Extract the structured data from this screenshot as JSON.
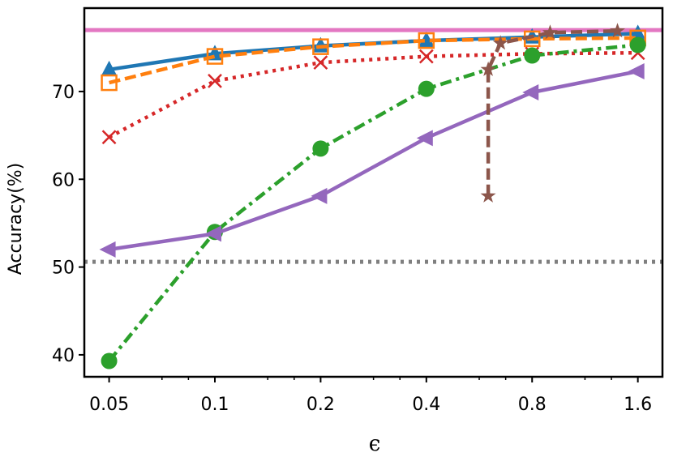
{
  "chart_data": {
    "type": "line",
    "title": "",
    "xlabel": "ϵ",
    "ylabel": "Accuracy(%)",
    "x_scale": "log2",
    "x_ticks": [
      0.05,
      0.1,
      0.2,
      0.4,
      0.8,
      1.6
    ],
    "x_tick_labels": [
      "0.05",
      "0.1",
      "0.2",
      "0.4",
      "0.8",
      "1.6"
    ],
    "xlim": [
      0.0425,
      1.88
    ],
    "ylim": [
      37.5,
      79.5
    ],
    "y_ticks": [
      40,
      50,
      60,
      70
    ],
    "y_tick_labels": [
      "40",
      "50",
      "60",
      "70"
    ],
    "grid": false,
    "legend": "none",
    "reference_lines": [
      {
        "name": "upper-reference",
        "y": 77.0,
        "color": "#e377c2",
        "style": "solid"
      },
      {
        "name": "lower-reference",
        "y": 50.6,
        "color": "#7f7f7f",
        "style": "dotted"
      }
    ],
    "series": [
      {
        "name": "blue-triangle-up",
        "color": "#1f77b4",
        "style": "solid",
        "marker": "triangle-up",
        "x": [
          0.05,
          0.1,
          0.2,
          0.4,
          0.8,
          1.6
        ],
        "values": [
          72.5,
          74.3,
          75.2,
          75.8,
          76.2,
          76.6
        ]
      },
      {
        "name": "orange-square",
        "color": "#ff7f0e",
        "style": "dashed",
        "marker": "square-open",
        "x": [
          0.05,
          0.1,
          0.2,
          0.4,
          0.8,
          1.6
        ],
        "values": [
          71.0,
          74.0,
          75.1,
          75.8,
          76.0,
          76.1
        ]
      },
      {
        "name": "red-x",
        "color": "#d62728",
        "style": "dotted",
        "marker": "x",
        "x": [
          0.05,
          0.1,
          0.2,
          0.4,
          0.8,
          1.6
        ],
        "values": [
          64.8,
          71.2,
          73.3,
          74.0,
          74.3,
          74.4
        ]
      },
      {
        "name": "green-circle",
        "color": "#2ca02c",
        "style": "dashdot",
        "marker": "circle",
        "x": [
          0.05,
          0.1,
          0.2,
          0.4,
          0.8,
          1.6
        ],
        "values": [
          39.3,
          54.0,
          63.5,
          70.3,
          74.1,
          75.3
        ]
      },
      {
        "name": "purple-triangle-left",
        "color": "#9467bd",
        "style": "solid",
        "marker": "triangle-left",
        "x": [
          0.05,
          0.1,
          0.2,
          0.4,
          0.8,
          1.6
        ],
        "values": [
          52.0,
          53.8,
          58.1,
          64.7,
          69.9,
          72.3
        ]
      },
      {
        "name": "brown-star",
        "color": "#8c564b",
        "style": "dashed",
        "marker": "star",
        "x": [
          0.6,
          0.6,
          0.65,
          0.9,
          1.4
        ],
        "values": [
          58.1,
          72.5,
          75.5,
          76.7,
          76.9
        ]
      }
    ]
  }
}
